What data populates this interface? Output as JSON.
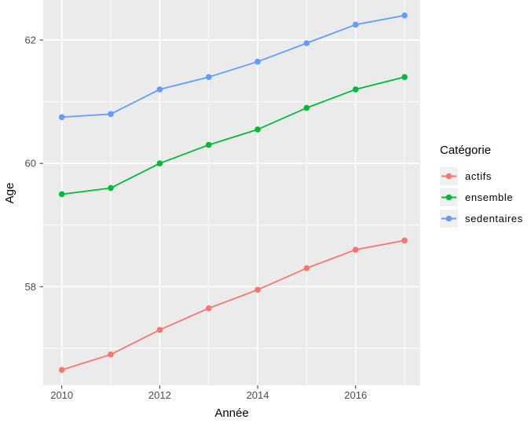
{
  "chart_data": {
    "type": "line",
    "title": "",
    "xlabel": "Année",
    "ylabel": "Age",
    "x": [
      2010,
      2011,
      2012,
      2013,
      2014,
      2015,
      2016,
      2017
    ],
    "series": [
      {
        "name": "actifs",
        "color": "#F8766D",
        "values": [
          56.65,
          56.9,
          57.3,
          57.65,
          57.95,
          58.3,
          58.6,
          58.75
        ]
      },
      {
        "name": "ensemble",
        "color": "#00BA38",
        "values": [
          59.5,
          59.6,
          60.0,
          60.3,
          60.55,
          60.9,
          61.2,
          61.4
        ]
      },
      {
        "name": "sedentaires",
        "color": "#619CFF",
        "values": [
          60.75,
          60.8,
          61.2,
          61.4,
          61.65,
          61.95,
          62.25,
          62.4
        ]
      }
    ],
    "x_ticks": [
      2010,
      2012,
      2014,
      2016
    ],
    "y_ticks": [
      58,
      60,
      62
    ],
    "x_minor_ticks": [
      2011,
      2013,
      2015,
      2017
    ],
    "y_minor_ticks": [
      57,
      59,
      61
    ],
    "xlim": [
      2009.62,
      2017.32
    ],
    "ylim": [
      56.4,
      62.65
    ],
    "grid": true,
    "panel_background": "#EBEBEB",
    "grid_color": "#FFFFFF",
    "tick_color": "#333333",
    "tick_label_color": "#4D4D4D",
    "legend": {
      "title": "Catégorie",
      "position": "right",
      "key_background": "#F0F0F0",
      "items": [
        {
          "label": "actifs",
          "color": "#F8766D"
        },
        {
          "label": "ensemble",
          "color": "#00BA38"
        },
        {
          "label": "sedentaires",
          "color": "#619CFF"
        }
      ]
    }
  }
}
